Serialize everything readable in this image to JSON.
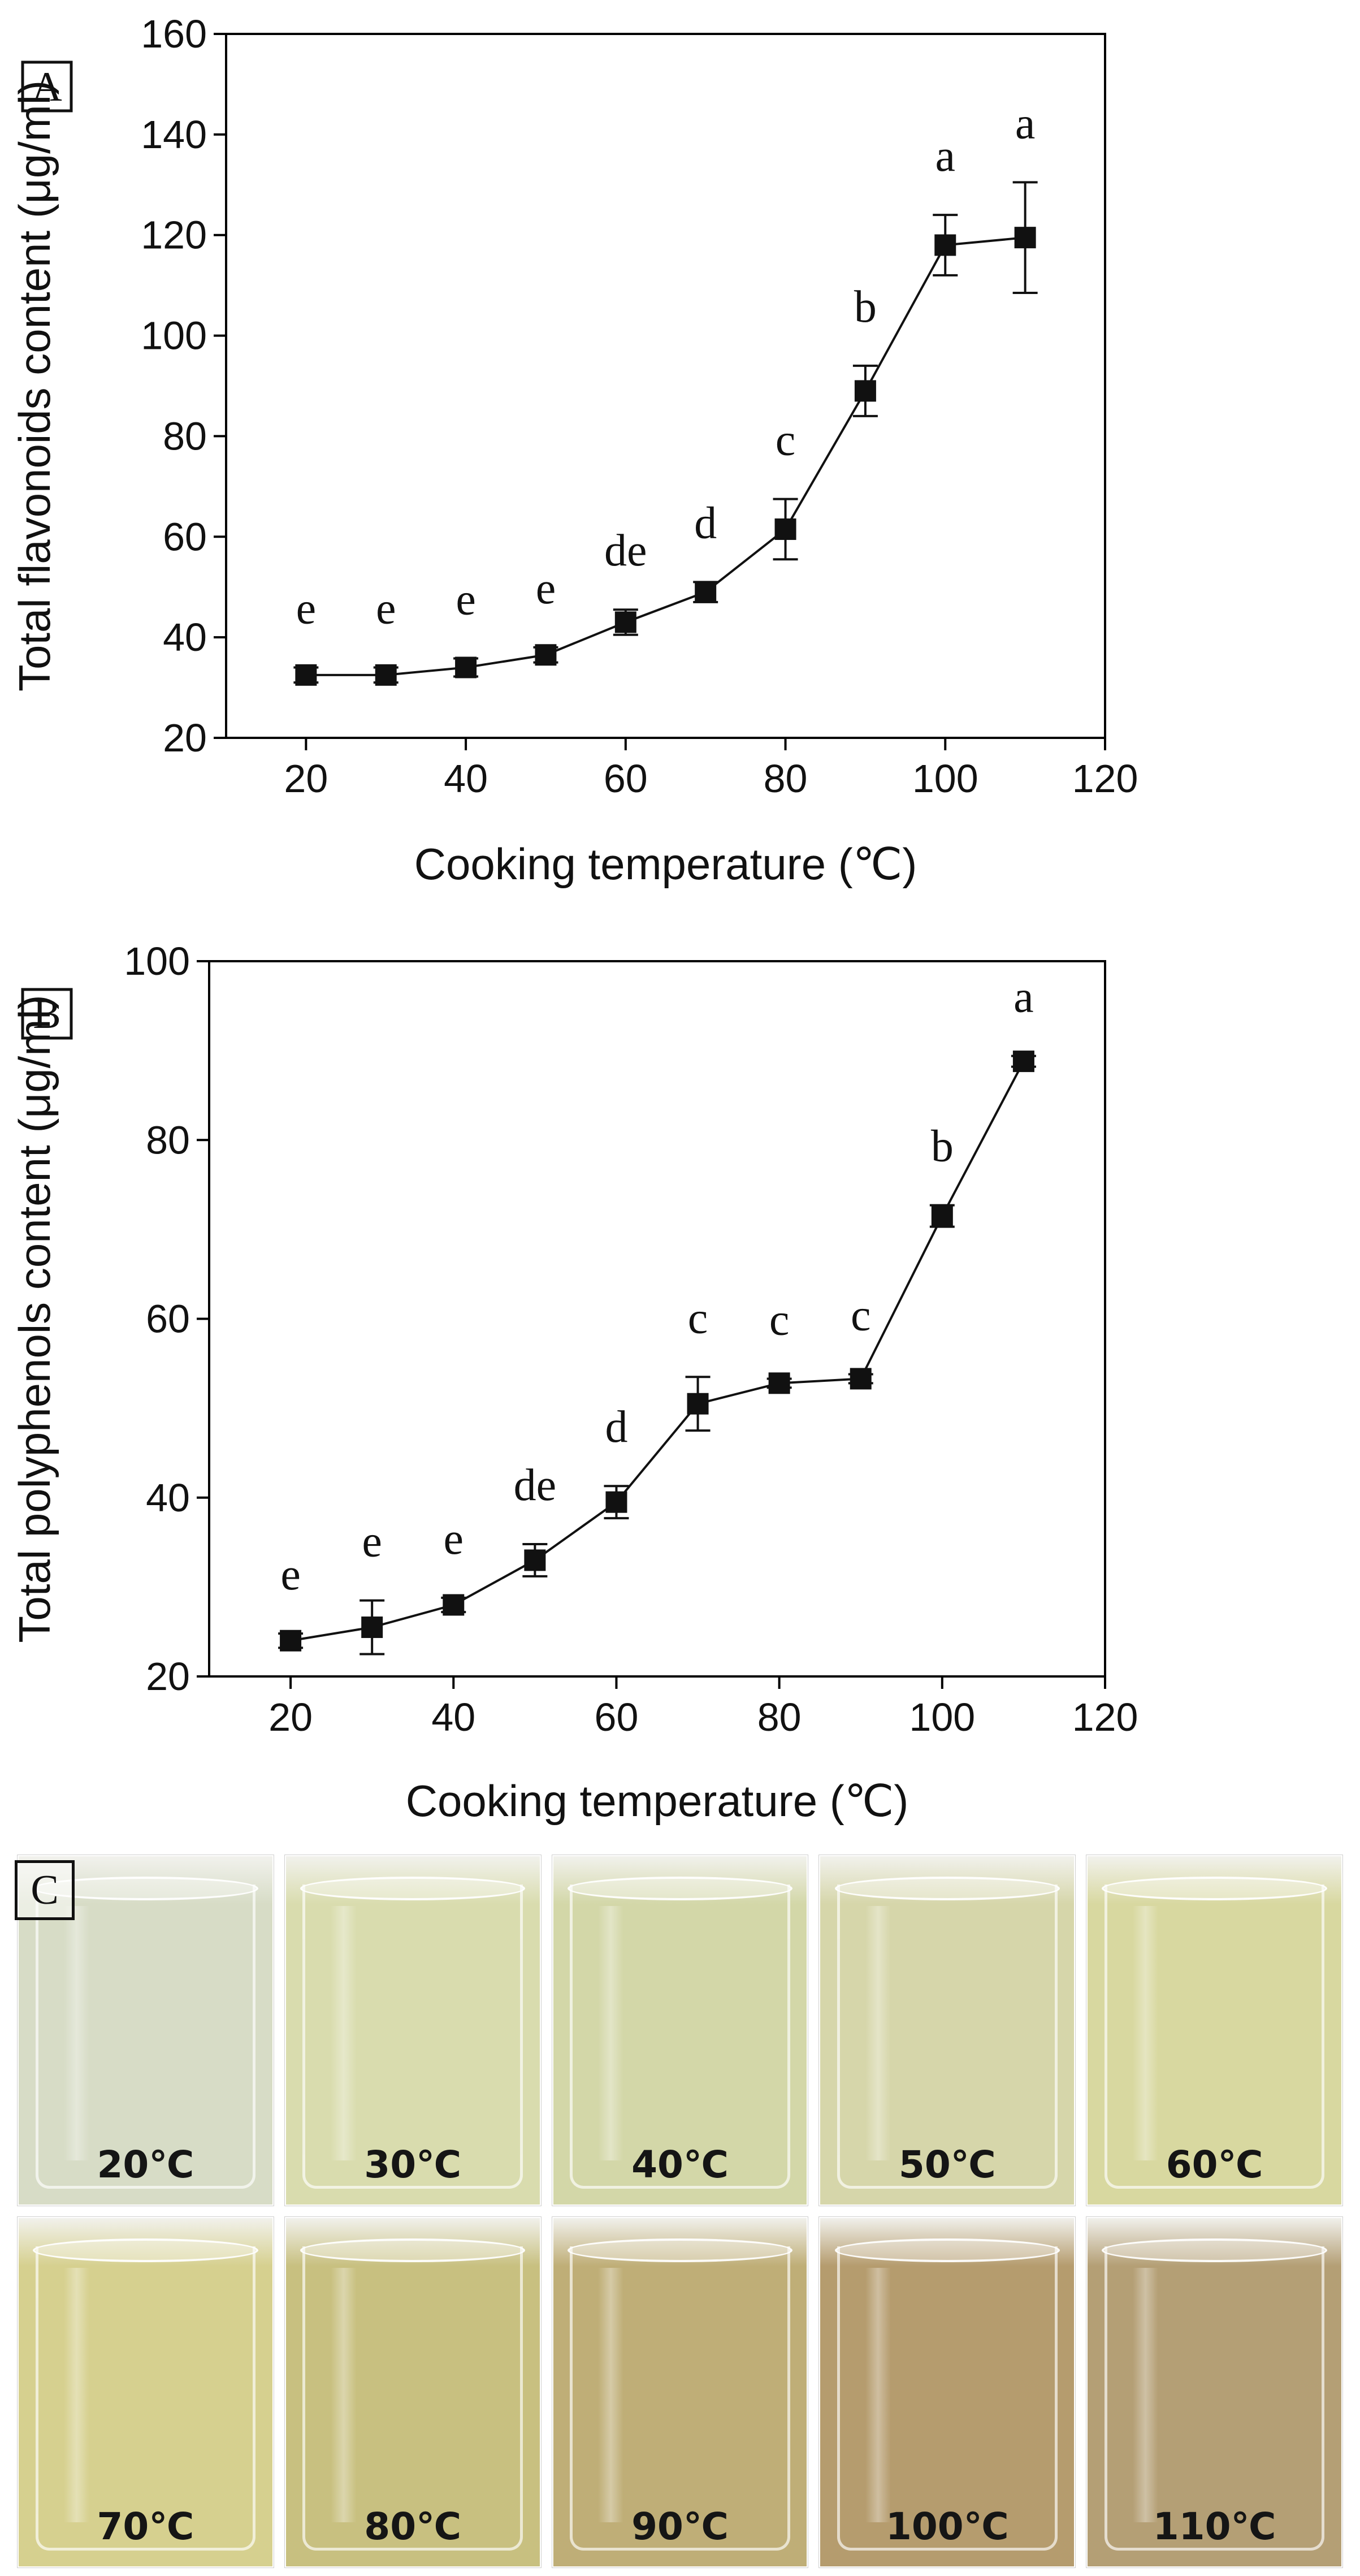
{
  "chart_data": [
    {
      "panel": "A",
      "type": "line",
      "xlabel": "Cooking temperature (℃)",
      "ylabel": "Total flavonoids  content (μg/ml)",
      "xlim": [
        10,
        120
      ],
      "ylim": [
        20,
        160
      ],
      "xticks": [
        20,
        40,
        60,
        80,
        100,
        120
      ],
      "yticks": [
        20,
        40,
        60,
        80,
        100,
        120,
        140,
        160
      ],
      "x": [
        20,
        30,
        40,
        50,
        60,
        70,
        80,
        90,
        100,
        110
      ],
      "y": [
        32.5,
        32.5,
        34,
        36.5,
        43,
        49,
        61.5,
        89,
        118,
        119.5
      ],
      "error": [
        1.5,
        1.5,
        1.8,
        1.5,
        2.5,
        2,
        6,
        5,
        6,
        11
      ],
      "significance": [
        "e",
        "e",
        "e",
        "e",
        "de",
        "d",
        "c",
        "b",
        "a",
        "a"
      ],
      "marker": "square"
    },
    {
      "panel": "B",
      "type": "line",
      "xlabel": "Cooking temperature (℃)",
      "ylabel": "Total polyphenols content (μg/ml)",
      "xlim": [
        10,
        120
      ],
      "ylim": [
        20,
        100
      ],
      "xticks": [
        20,
        40,
        60,
        80,
        100,
        120
      ],
      "yticks": [
        20,
        40,
        60,
        80,
        100
      ],
      "x": [
        20,
        30,
        40,
        50,
        60,
        70,
        80,
        90,
        100,
        110
      ],
      "y": [
        24,
        25.5,
        28,
        33,
        39.5,
        50.5,
        52.8,
        53.3,
        71.5,
        88.8
      ],
      "error": [
        0.8,
        3,
        0.8,
        1.8,
        1.8,
        3,
        0.5,
        0.5,
        1.2,
        0.6
      ],
      "significance": [
        "e",
        "e",
        "e",
        "de",
        "d",
        "c",
        "c",
        "c",
        "b",
        "a"
      ],
      "marker": "square"
    }
  ],
  "panelC": {
    "tag": "C",
    "photos": [
      {
        "label": "20℃",
        "color": "#d7dcc6"
      },
      {
        "label": "30℃",
        "color": "#d9dcae"
      },
      {
        "label": "40℃",
        "color": "#d3d7a8"
      },
      {
        "label": "50℃",
        "color": "#d6d6aa"
      },
      {
        "label": "60℃",
        "color": "#d8d8a0"
      },
      {
        "label": "70℃",
        "color": "#d6d08f"
      },
      {
        "label": "80℃",
        "color": "#c8c080"
      },
      {
        "label": "90℃",
        "color": "#bfae77"
      },
      {
        "label": "100℃",
        "color": "#b59c6e"
      },
      {
        "label": "110℃",
        "color": "#b49f75"
      }
    ]
  }
}
